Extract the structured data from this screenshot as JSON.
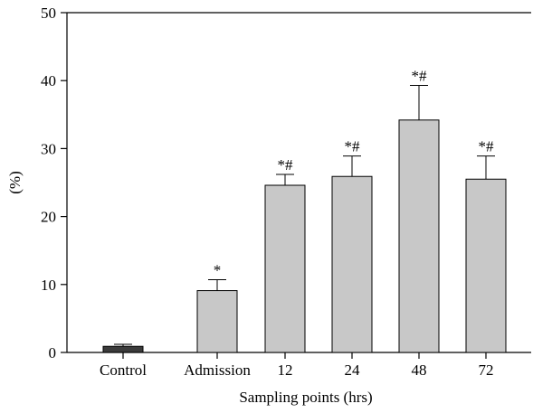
{
  "chart_data": {
    "type": "bar",
    "title": "",
    "xlabel": "Sampling points (hrs)",
    "ylabel": "(%)",
    "ylim": [
      0,
      50
    ],
    "yticks": [
      0,
      10,
      20,
      30,
      40,
      50
    ],
    "grid": false,
    "categories": [
      "Control",
      "Admission",
      "12",
      "24",
      "48",
      "72"
    ],
    "values": [
      0.9,
      9.1,
      24.6,
      25.9,
      34.2,
      25.5
    ],
    "errors": [
      0.3,
      1.6,
      1.6,
      3.0,
      5.1,
      3.4
    ],
    "annotations": [
      "",
      "*",
      "*#",
      "*#",
      "*#",
      "*#"
    ],
    "colors": {
      "control_bar": "#3b3b3b",
      "bar": "#c8c8c8",
      "stroke": "#000000"
    }
  }
}
